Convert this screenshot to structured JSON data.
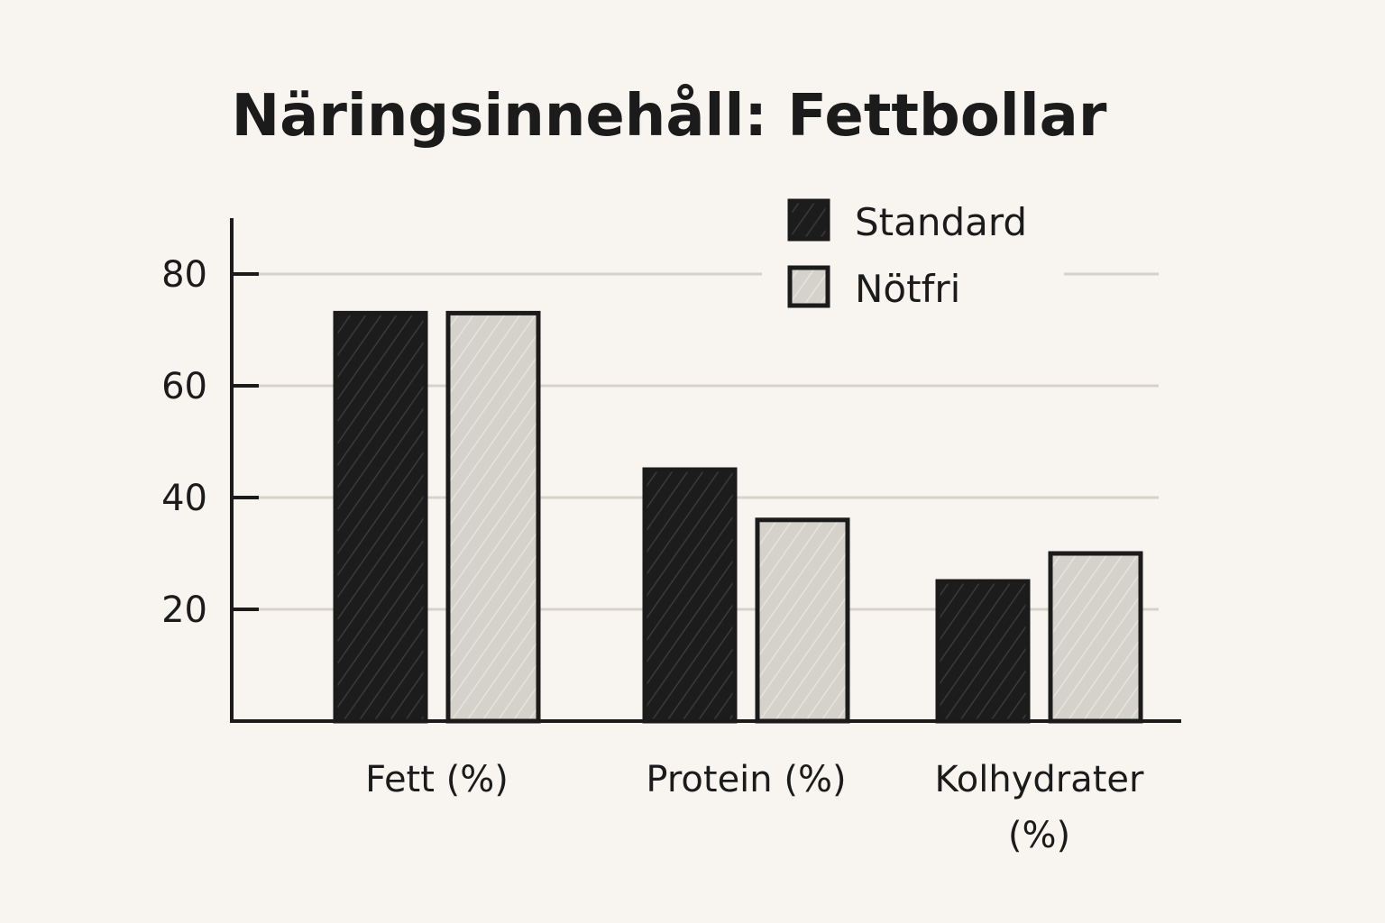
{
  "chart_data": {
    "type": "bar",
    "title": "Näringsinnehåll: Fettbollar",
    "categories": [
      [
        "Fett (%)"
      ],
      [
        "Protein (%)"
      ],
      [
        "Kolhydrater",
        "(%)"
      ]
    ],
    "series": [
      {
        "name": "Standard",
        "values": [
          73,
          45,
          25
        ],
        "color": "#1c1c1c"
      },
      {
        "name": "Nötfri",
        "values": [
          73,
          36,
          30
        ],
        "color": "#d5d2cb"
      }
    ],
    "y_ticks": [
      20,
      40,
      60,
      80
    ],
    "ylim": [
      0,
      90
    ],
    "grid": true,
    "legend_position": "top-right",
    "xlabel": "",
    "ylabel": ""
  }
}
